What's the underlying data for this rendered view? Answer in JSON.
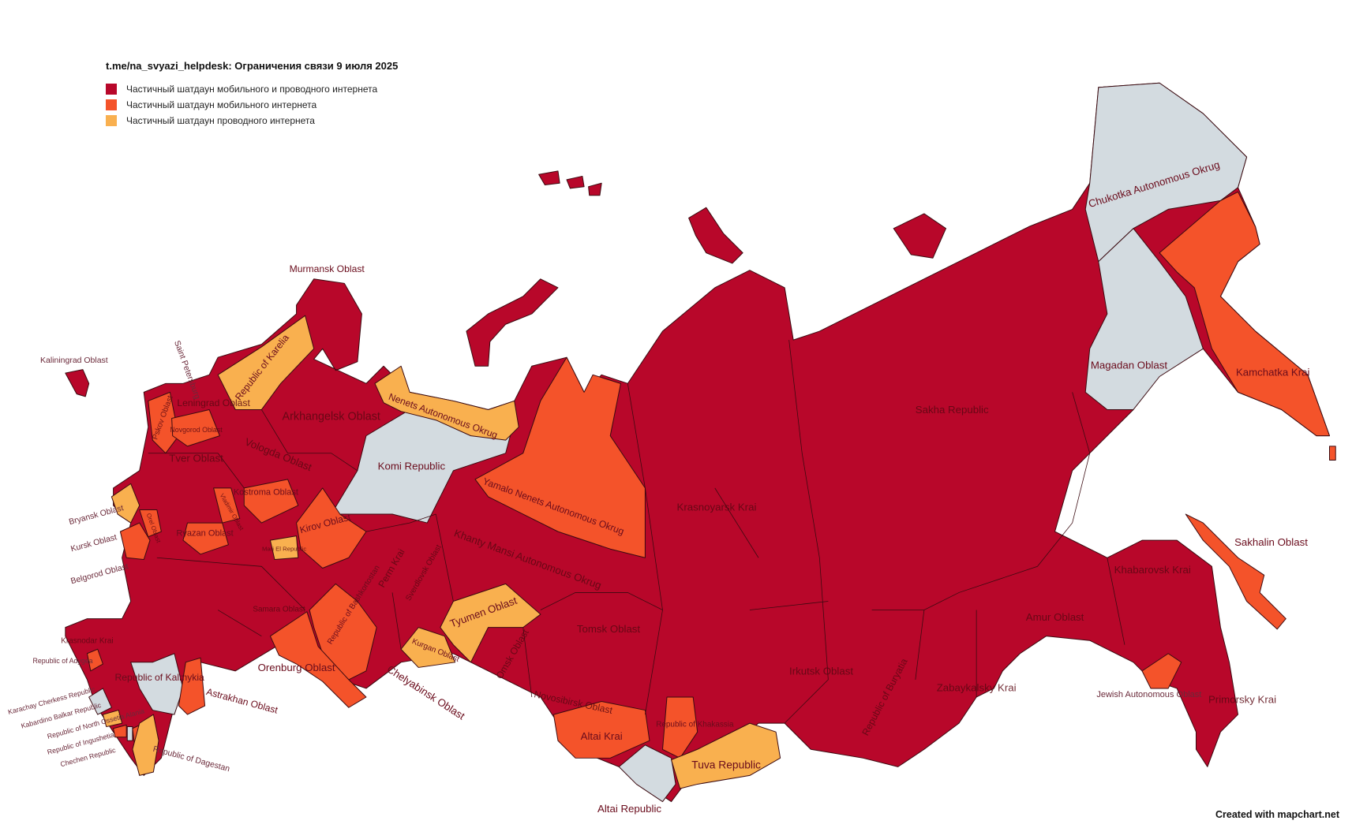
{
  "title": "t.me/na_svyazi_helpdesk: Ограничения связи 9 июля 2025",
  "legend": [
    {
      "key": "mobile_and_wired",
      "label": "Частичный шатдаун мобильного и проводного интернета",
      "color": "#b8072a"
    },
    {
      "key": "mobile",
      "label": "Частичный шатдаун мобильного интернета",
      "color": "#f4532a"
    },
    {
      "key": "wired",
      "label": "Частичный шатдаун проводного интернета",
      "color": "#f9b04f"
    }
  ],
  "colors": {
    "no_restriction": "#d3dbe0",
    "border": "#3a0a10"
  },
  "footer": "Created with mapchart.net",
  "regions": [
    {
      "name": "Murmansk Oblast",
      "status": "mobile_and_wired"
    },
    {
      "name": "Kaliningrad Oblast",
      "status": "mobile_and_wired"
    },
    {
      "name": "Saint Petersburg",
      "status": "mobile_and_wired"
    },
    {
      "name": "Republic of Karelia",
      "status": "wired"
    },
    {
      "name": "Leningrad Oblast",
      "status": "mobile_and_wired"
    },
    {
      "name": "Pskov Oblast",
      "status": "mobile"
    },
    {
      "name": "Novgorod Oblast",
      "status": "mobile"
    },
    {
      "name": "Arkhangelsk Oblast",
      "status": "mobile_and_wired"
    },
    {
      "name": "Vologda Oblast",
      "status": "mobile_and_wired"
    },
    {
      "name": "Tver Oblast",
      "status": "mobile_and_wired"
    },
    {
      "name": "Komi Republic",
      "status": "none"
    },
    {
      "name": "Nenets Autonomous Okrug",
      "status": "wired"
    },
    {
      "name": "Yamalo Nenets Autonomous Okrug",
      "status": "mobile"
    },
    {
      "name": "Kostroma Oblast",
      "status": "mobile"
    },
    {
      "name": "Kirov Oblast",
      "status": "mobile"
    },
    {
      "name": "Mari El Republic",
      "status": "wired"
    },
    {
      "name": "Vladimir Oblast",
      "status": "mobile"
    },
    {
      "name": "Ryazan Oblast",
      "status": "mobile"
    },
    {
      "name": "Bryansk Oblast",
      "status": "wired"
    },
    {
      "name": "Orel Oblast",
      "status": "mobile"
    },
    {
      "name": "Kursk Oblast",
      "status": "mobile"
    },
    {
      "name": "Belgorod Oblast",
      "status": "mobile_and_wired"
    },
    {
      "name": "Perm Krai",
      "status": "mobile_and_wired"
    },
    {
      "name": "Sverdlovsk Oblast",
      "status": "mobile_and_wired"
    },
    {
      "name": "Khanty Mansi Autonomous Okrug",
      "status": "mobile_and_wired"
    },
    {
      "name": "Krasnoyarsk Krai",
      "status": "mobile_and_wired"
    },
    {
      "name": "Sakha Republic",
      "status": "mobile_and_wired"
    },
    {
      "name": "Chukotka Autonomous Okrug",
      "status": "none"
    },
    {
      "name": "Magadan Oblast",
      "status": "none"
    },
    {
      "name": "Kamchatka Krai",
      "status": "mobile"
    },
    {
      "name": "Sakhalin Oblast",
      "status": "mobile"
    },
    {
      "name": "Khabarovsk Krai",
      "status": "mobile_and_wired"
    },
    {
      "name": "Amur Oblast",
      "status": "mobile_and_wired"
    },
    {
      "name": "Jewish Autonomous Oblast",
      "status": "mobile"
    },
    {
      "name": "Primorsky Krai",
      "status": "mobile_and_wired"
    },
    {
      "name": "Zabaykalsky Krai",
      "status": "mobile_and_wired"
    },
    {
      "name": "Republic of Buryatia",
      "status": "mobile_and_wired"
    },
    {
      "name": "Irkutsk Oblast",
      "status": "mobile_and_wired"
    },
    {
      "name": "Tuva Republic",
      "status": "wired"
    },
    {
      "name": "Altai Republic",
      "status": "none"
    },
    {
      "name": "Altai Krai",
      "status": "mobile"
    },
    {
      "name": "Republic of Khakassia",
      "status": "mobile"
    },
    {
      "name": "Novosibirsk Oblast",
      "status": "mobile_and_wired"
    },
    {
      "name": "Tomsk Oblast",
      "status": "mobile_and_wired"
    },
    {
      "name": "Omsk Oblast",
      "status": "mobile_and_wired"
    },
    {
      "name": "Tyumen Oblast",
      "status": "wired"
    },
    {
      "name": "Kurgan Oblast",
      "status": "wired"
    },
    {
      "name": "Chelyabinsk Oblast",
      "status": "mobile_and_wired"
    },
    {
      "name": "Orenburg Oblast",
      "status": "mobile"
    },
    {
      "name": "Republic of Bashkortostan",
      "status": "mobile"
    },
    {
      "name": "Samara Oblast",
      "status": "mobile_and_wired"
    },
    {
      "name": "Astrakhan Oblast",
      "status": "mobile"
    },
    {
      "name": "Republic of Kalmykia",
      "status": "none"
    },
    {
      "name": "Republic of Adygea",
      "status": "mobile"
    },
    {
      "name": "Krasnodar Krai",
      "status": "mobile_and_wired"
    },
    {
      "name": "Karachay Cherkess Republic",
      "status": "none"
    },
    {
      "name": "Kabardino Balkar Republic",
      "status": "wired"
    },
    {
      "name": "Republic of North Ossetia Alania",
      "status": "mobile"
    },
    {
      "name": "Republic of Ingushetia",
      "status": "none"
    },
    {
      "name": "Chechen Republic",
      "status": "mobile"
    },
    {
      "name": "Republic of Dagestan",
      "status": "wired"
    }
  ]
}
